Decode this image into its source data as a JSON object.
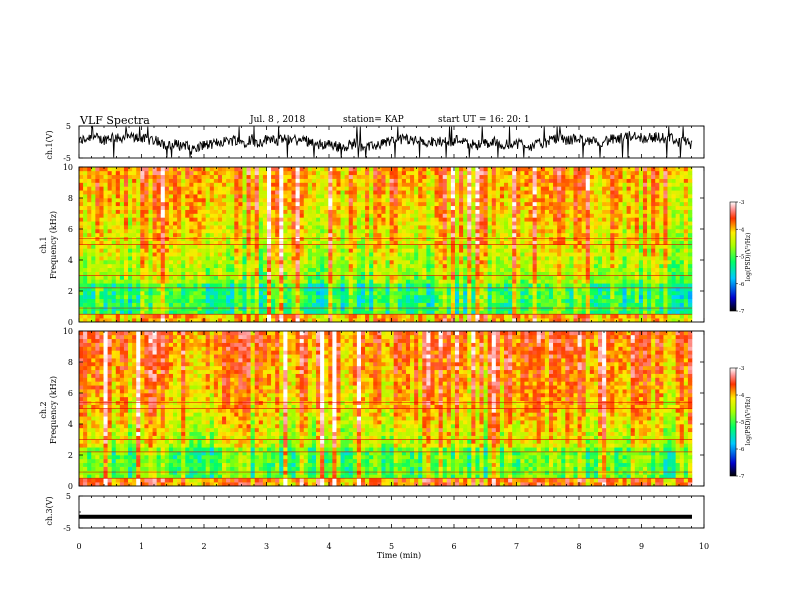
{
  "header": {
    "title": "VLF Spectra",
    "date": "Jul. 8 , 2018",
    "station": "station= KAP",
    "start_time": "start UT =  16: 20: 1"
  },
  "chart_data": [
    {
      "type": "line",
      "panel": "ch1-waveform",
      "ylabel": "ch.1(V)",
      "ylim": [
        -5,
        5
      ],
      "yticks": [
        "5",
        "-5"
      ],
      "xlim": [
        0,
        10
      ],
      "description_series": "noisy voltage trace between -5 and 5 V"
    },
    {
      "type": "heatmap",
      "panel": "ch1-spectrogram",
      "ylabel_channel": "ch.1",
      "ylabel": "Frequency (kHz)",
      "ylim": [
        0,
        10
      ],
      "yticks": [
        "0",
        "2",
        "4",
        "6",
        "8",
        "10"
      ],
      "xlim": [
        0,
        10
      ],
      "colorbar": {
        "label": "log(PSD)(V²/Hz)",
        "range": [
          -7,
          -3
        ],
        "ticks": [
          "-3",
          "-4",
          "-5",
          "-6",
          "-7"
        ]
      }
    },
    {
      "type": "heatmap",
      "panel": "ch2-spectrogram",
      "ylabel_channel": "ch.2",
      "ylabel": "Frequency (kHz)",
      "ylim": [
        0,
        10
      ],
      "yticks": [
        "0",
        "2",
        "4",
        "6",
        "8",
        "10"
      ],
      "xlim": [
        0,
        10
      ],
      "colorbar": {
        "label": "log(PSD)(V²/Hz)",
        "range": [
          -7,
          -3
        ],
        "ticks": [
          "-3",
          "-4",
          "-5",
          "-6",
          "-7"
        ]
      }
    },
    {
      "type": "line",
      "panel": "ch3-waveform",
      "ylabel": "ch.3(V)",
      "ylim": [
        -5,
        5
      ],
      "yticks": [
        "5",
        "-5"
      ],
      "xlim": [
        0,
        10
      ],
      "xlabel": "Time (min)",
      "xticks": [
        "0",
        "1",
        "2",
        "3",
        "4",
        "5",
        "6",
        "7",
        "8",
        "9",
        "10"
      ],
      "constant_value": -1.5
    }
  ],
  "labels": {
    "ch1_v": "ch.1(V)",
    "ch1": "ch.1",
    "ch2": "ch.2",
    "ch3_v": "ch.3(V)",
    "freq": "Frequency (kHz)",
    "time": "Time (min)",
    "cbar": "log(PSD)(V²/Hz)"
  }
}
